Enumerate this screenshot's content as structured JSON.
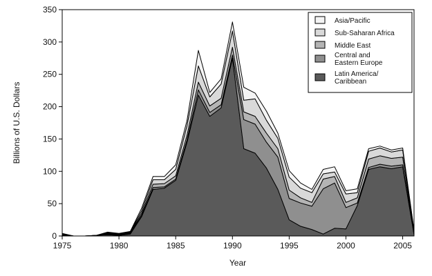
{
  "chart_data": {
    "type": "area",
    "stacked": true,
    "xlabel": "Year",
    "ylabel": "Billions of U.S. Dollars",
    "xlim": [
      1975,
      2006
    ],
    "ylim": [
      0,
      350
    ],
    "x_ticks": [
      1975,
      1980,
      1985,
      1990,
      1995,
      2000,
      2005
    ],
    "y_ticks": [
      0,
      50,
      100,
      150,
      200,
      250,
      300,
      350
    ],
    "grid": false,
    "legend_position": "top-right",
    "x": [
      1975,
      1976,
      1977,
      1978,
      1979,
      1980,
      1981,
      1982,
      1983,
      1984,
      1985,
      1986,
      1987,
      1988,
      1989,
      1990,
      1991,
      1992,
      1993,
      1994,
      1995,
      1996,
      1997,
      1998,
      1999,
      2000,
      2001,
      2002,
      2003,
      2004,
      2005,
      2006
    ],
    "series": [
      {
        "name": "Latin America/ Caribbean",
        "color": "#5a5a5a",
        "values": [
          0,
          0,
          0,
          1,
          2,
          1,
          3,
          30,
          72,
          74,
          86,
          145,
          218,
          185,
          198,
          275,
          135,
          128,
          105,
          72,
          25,
          15,
          10,
          3,
          12,
          11,
          47,
          103,
          107,
          104,
          107,
          2
        ]
      },
      {
        "name": "Central and Eastern Europe",
        "color": "#8f8f8f",
        "values": [
          1,
          0,
          0,
          0,
          1,
          0,
          1,
          2,
          3,
          2,
          2,
          4,
          8,
          6,
          5,
          5,
          45,
          45,
          40,
          50,
          33,
          36,
          36,
          70,
          70,
          33,
          4,
          3,
          4,
          4,
          3,
          1
        ]
      },
      {
        "name": "Middle East",
        "color": "#b4b4b4",
        "values": [
          1,
          0,
          0,
          0,
          1,
          1,
          1,
          3,
          5,
          5,
          5,
          7,
          12,
          10,
          10,
          12,
          12,
          12,
          14,
          13,
          13,
          8,
          6,
          15,
          10,
          8,
          8,
          13,
          13,
          12,
          12,
          2
        ]
      },
      {
        "name": "Sub-Saharan Africa",
        "color": "#d9d9d9",
        "values": [
          1,
          0,
          0,
          0,
          1,
          1,
          1,
          4,
          7,
          6,
          10,
          15,
          25,
          14,
          22,
          25,
          18,
          27,
          20,
          16,
          20,
          15,
          15,
          8,
          7,
          13,
          8,
          12,
          12,
          10,
          11,
          3
        ]
      },
      {
        "name": "Asia/Pacific",
        "color": "#f4f4f4",
        "values": [
          1,
          0,
          0,
          0,
          1,
          1,
          1,
          4,
          5,
          5,
          7,
          8,
          24,
          7,
          8,
          14,
          20,
          9,
          14,
          8,
          10,
          8,
          5,
          7,
          8,
          5,
          6,
          4,
          3,
          3,
          3,
          1
        ]
      }
    ]
  }
}
